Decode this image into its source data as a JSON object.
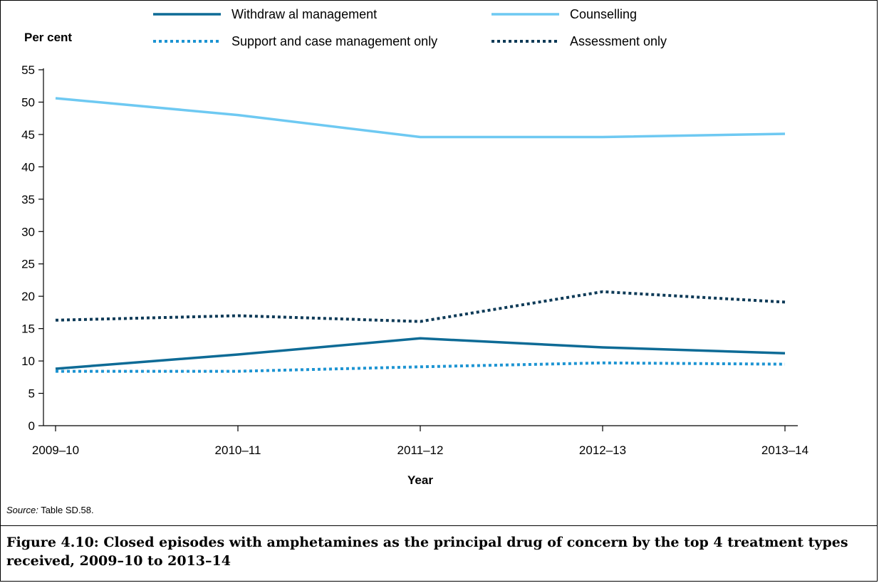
{
  "chart_data": {
    "type": "line",
    "ylabel": "Per cent",
    "xlabel": "Year",
    "categories": [
      "2009–10",
      "2010–11",
      "2011–12",
      "2012–13",
      "2013–14"
    ],
    "ylim": [
      0,
      55
    ],
    "yticks": [
      0,
      5,
      10,
      15,
      20,
      25,
      30,
      35,
      40,
      45,
      50,
      55
    ],
    "legend_position": "top",
    "series": [
      {
        "name": "Withdraw al management",
        "color": "#0e6b96",
        "style": "solid",
        "values": [
          8.8,
          11.0,
          13.5,
          12.1,
          11.2
        ]
      },
      {
        "name": "Counselling",
        "color": "#6ec9f2",
        "style": "solid",
        "values": [
          50.6,
          48.0,
          44.6,
          44.6,
          45.1
        ]
      },
      {
        "name": "Support and case management only",
        "color": "#1d94d2",
        "style": "dotted",
        "values": [
          8.4,
          8.4,
          9.1,
          9.7,
          9.5
        ]
      },
      {
        "name": "Assessment only",
        "color": "#0d3a57",
        "style": "dotted",
        "values": [
          16.3,
          17.0,
          16.1,
          20.7,
          19.1
        ]
      }
    ]
  },
  "source_label": "Source:",
  "source_text": " Table SD.58.",
  "caption": "Figure 4.10: Closed episodes with amphetamines as the principal drug of concern by the top 4 treatment types received, 2009–10 to 2013–14"
}
